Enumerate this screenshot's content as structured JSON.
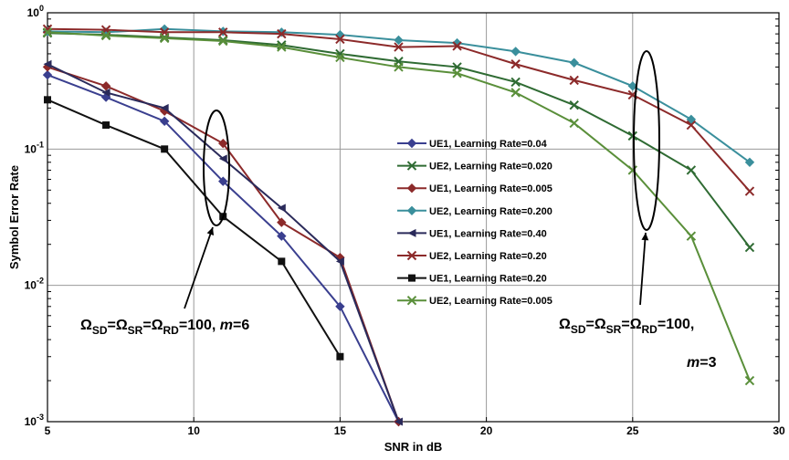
{
  "chart_data": {
    "type": "line",
    "xlabel": "SNR in dB",
    "ylabel": "Symbol Error Rate",
    "x_scale": "linear",
    "y_scale": "log",
    "xlim": [
      5,
      30
    ],
    "ylim": [
      0.001,
      1
    ],
    "x_ticks": [
      5,
      10,
      15,
      20,
      25,
      30
    ],
    "y_ticks": [
      {
        "value": 1,
        "base": "10",
        "exp": "0"
      },
      {
        "value": 0.1,
        "base": "10",
        "exp": "-1"
      },
      {
        "value": 0.01,
        "base": "10",
        "exp": "-2"
      },
      {
        "value": 0.001,
        "base": "10",
        "exp": "-3"
      }
    ],
    "grid": true,
    "legend_position": "center-right",
    "series": [
      {
        "name": "UE1, Learning Rate=0.04",
        "color": "#3a3f8f",
        "marker": "diamond",
        "x": [
          5,
          7,
          9,
          11,
          13,
          15,
          17
        ],
        "y": [
          0.35,
          0.24,
          0.16,
          0.058,
          0.023,
          0.007,
          0.001
        ]
      },
      {
        "name": "UE2, Learning Rate=0.020",
        "color": "#2f6b33",
        "marker": "x",
        "x": [
          5,
          7,
          9,
          11,
          13,
          15,
          17,
          19,
          21,
          23,
          25,
          27,
          29
        ],
        "y": [
          0.71,
          0.69,
          0.66,
          0.63,
          0.58,
          0.5,
          0.44,
          0.4,
          0.31,
          0.21,
          0.125,
          0.07,
          0.019
        ]
      },
      {
        "name": "UE1, Learning Rate=0.005",
        "color": "#8c2a2a",
        "marker": "diamond",
        "x": [
          5,
          7,
          9,
          11,
          13,
          15,
          17
        ],
        "y": [
          0.4,
          0.29,
          0.19,
          0.11,
          0.029,
          0.016,
          0.001
        ]
      },
      {
        "name": "UE2, Learning Rate=0.200",
        "color": "#3a8f9c",
        "marker": "diamond",
        "x": [
          5,
          7,
          9,
          11,
          13,
          15,
          17,
          19,
          21,
          23,
          25,
          27,
          29
        ],
        "y": [
          0.73,
          0.72,
          0.76,
          0.73,
          0.72,
          0.69,
          0.63,
          0.6,
          0.52,
          0.43,
          0.29,
          0.165,
          0.08
        ]
      },
      {
        "name": "UE1, Learning Rate=0.40",
        "color": "#2a2a5a",
        "marker": "triangle-left",
        "x": [
          5,
          7,
          9,
          11,
          13,
          15,
          17
        ],
        "y": [
          0.42,
          0.26,
          0.2,
          0.085,
          0.037,
          0.015,
          0.001
        ]
      },
      {
        "name": "UE2, Learning Rate=0.20",
        "color": "#8c2a2a",
        "marker": "x",
        "x": [
          5,
          7,
          9,
          11,
          13,
          15,
          17,
          19,
          21,
          23,
          25,
          27,
          29
        ],
        "y": [
          0.76,
          0.75,
          0.72,
          0.72,
          0.7,
          0.64,
          0.56,
          0.57,
          0.42,
          0.32,
          0.25,
          0.15,
          0.049
        ]
      },
      {
        "name": "UE1, Learning Rate=0.20",
        "color": "#111111",
        "marker": "square",
        "x": [
          5,
          7,
          9,
          11,
          13,
          15
        ],
        "y": [
          0.23,
          0.15,
          0.1,
          0.032,
          0.015,
          0.003
        ]
      },
      {
        "name": "UE2, Learning Rate=0.005",
        "color": "#5a8f3a",
        "marker": "x",
        "x": [
          5,
          7,
          9,
          11,
          13,
          15,
          17,
          19,
          21,
          23,
          25,
          27,
          29
        ],
        "y": [
          0.72,
          0.68,
          0.65,
          0.62,
          0.56,
          0.47,
          0.4,
          0.36,
          0.26,
          0.155,
          0.07,
          0.023,
          0.002
        ]
      }
    ],
    "annotations": [
      {
        "text_parts": [
          "Ω",
          "SD",
          "=Ω",
          "SR",
          "=Ω",
          "RD",
          "=100, ",
          "m",
          "=6"
        ]
      },
      {
        "line1_parts": [
          "Ω",
          "SD",
          "=Ω",
          "SR",
          "=Ω",
          "RD",
          "=100,"
        ],
        "line2_parts": [
          "m",
          "=3"
        ]
      }
    ]
  }
}
